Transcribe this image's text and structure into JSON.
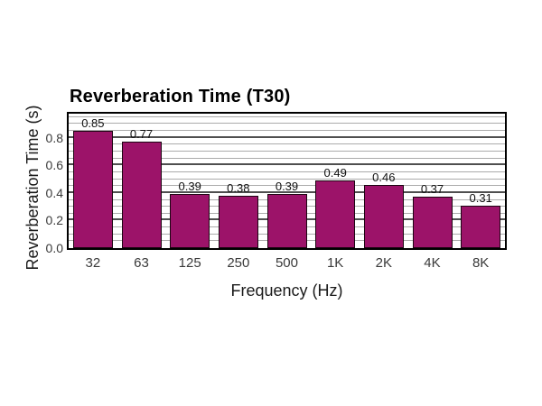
{
  "page": {
    "background": "#ffffff"
  },
  "chart_data": {
    "type": "bar",
    "title": "Reverberation Time (T30)",
    "xlabel": "Frequency (Hz)",
    "ylabel": "Reverberation Time (s)",
    "categories": [
      "32",
      "63",
      "125",
      "250",
      "500",
      "1K",
      "2K",
      "4K",
      "8K"
    ],
    "values": [
      0.85,
      0.77,
      0.39,
      0.38,
      0.39,
      0.49,
      0.46,
      0.37,
      0.31
    ],
    "value_labels": [
      "0.85",
      "0.77",
      "0.39",
      "0.38",
      "0.39",
      "0.49",
      "0.46",
      "0.37",
      "0.31"
    ],
    "ytick_values": [
      0.0,
      0.2,
      0.4,
      0.6,
      0.8
    ],
    "ytick_labels": [
      "0.0",
      "0.2",
      "0.4",
      "0.6",
      "0.8"
    ],
    "ylim": [
      0,
      0.975
    ],
    "minor_grid_step": 0.05,
    "major_grid_step": 0.2,
    "grid": true,
    "legend": "none",
    "bar_color": "#9C1369",
    "bar_border_color": "#1c0512",
    "minor_grid_color": "#ababab",
    "major_grid_color": "#4f4f4f",
    "frame_color": "#000000"
  }
}
